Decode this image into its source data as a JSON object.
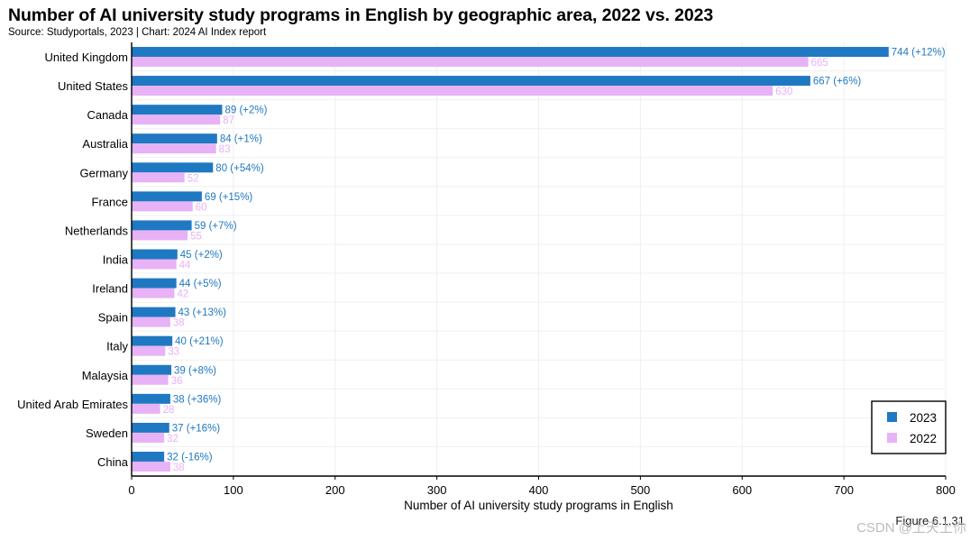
{
  "title": "Number of AI university study programs in English by geographic area, 2022 vs. 2023",
  "source": "Source: Studyportals, 2023 | Chart: 2024 AI Index report",
  "figure_label": "Figure 6.1.31",
  "watermark": "CSDN @上天上你",
  "colors": {
    "series_2023": "#1f78c2",
    "series_2022": "#e8b2f6",
    "grid": "#efefef",
    "axis": "#000000"
  },
  "chart_data": {
    "type": "bar",
    "orientation": "horizontal",
    "title": "Number of AI university study programs in English by geographic area, 2022 vs. 2023",
    "xlabel": "Number of AI university study programs in English",
    "ylabel": "",
    "xlim": [
      0,
      800
    ],
    "xticks": [
      0,
      100,
      200,
      300,
      400,
      500,
      600,
      700,
      800
    ],
    "grid": true,
    "legend_position": "bottom-right",
    "categories": [
      "United Kingdom",
      "United States",
      "Canada",
      "Australia",
      "Germany",
      "France",
      "Netherlands",
      "India",
      "Ireland",
      "Spain",
      "Italy",
      "Malaysia",
      "United Arab Emirates",
      "Sweden",
      "China"
    ],
    "series": [
      {
        "name": "2023",
        "values": [
          744,
          667,
          89,
          84,
          80,
          69,
          59,
          45,
          44,
          43,
          40,
          39,
          38,
          37,
          32
        ],
        "labels": [
          "744 (+12%)",
          "667 (+6%)",
          "89 (+2%)",
          "84 (+1%)",
          "80 (+54%)",
          "69 (+15%)",
          "59 (+7%)",
          "45 (+2%)",
          "44 (+5%)",
          "43 (+13%)",
          "40 (+21%)",
          "39 (+8%)",
          "38 (+36%)",
          "37 (+16%)",
          "32 (-16%)"
        ]
      },
      {
        "name": "2022",
        "values": [
          665,
          630,
          87,
          83,
          52,
          60,
          55,
          44,
          42,
          38,
          33,
          36,
          28,
          32,
          38
        ],
        "labels": [
          "665",
          "630",
          "87",
          "83",
          "52",
          "60",
          "55",
          "44",
          "42",
          "38",
          "33",
          "36",
          "28",
          "32",
          "38"
        ]
      }
    ]
  }
}
